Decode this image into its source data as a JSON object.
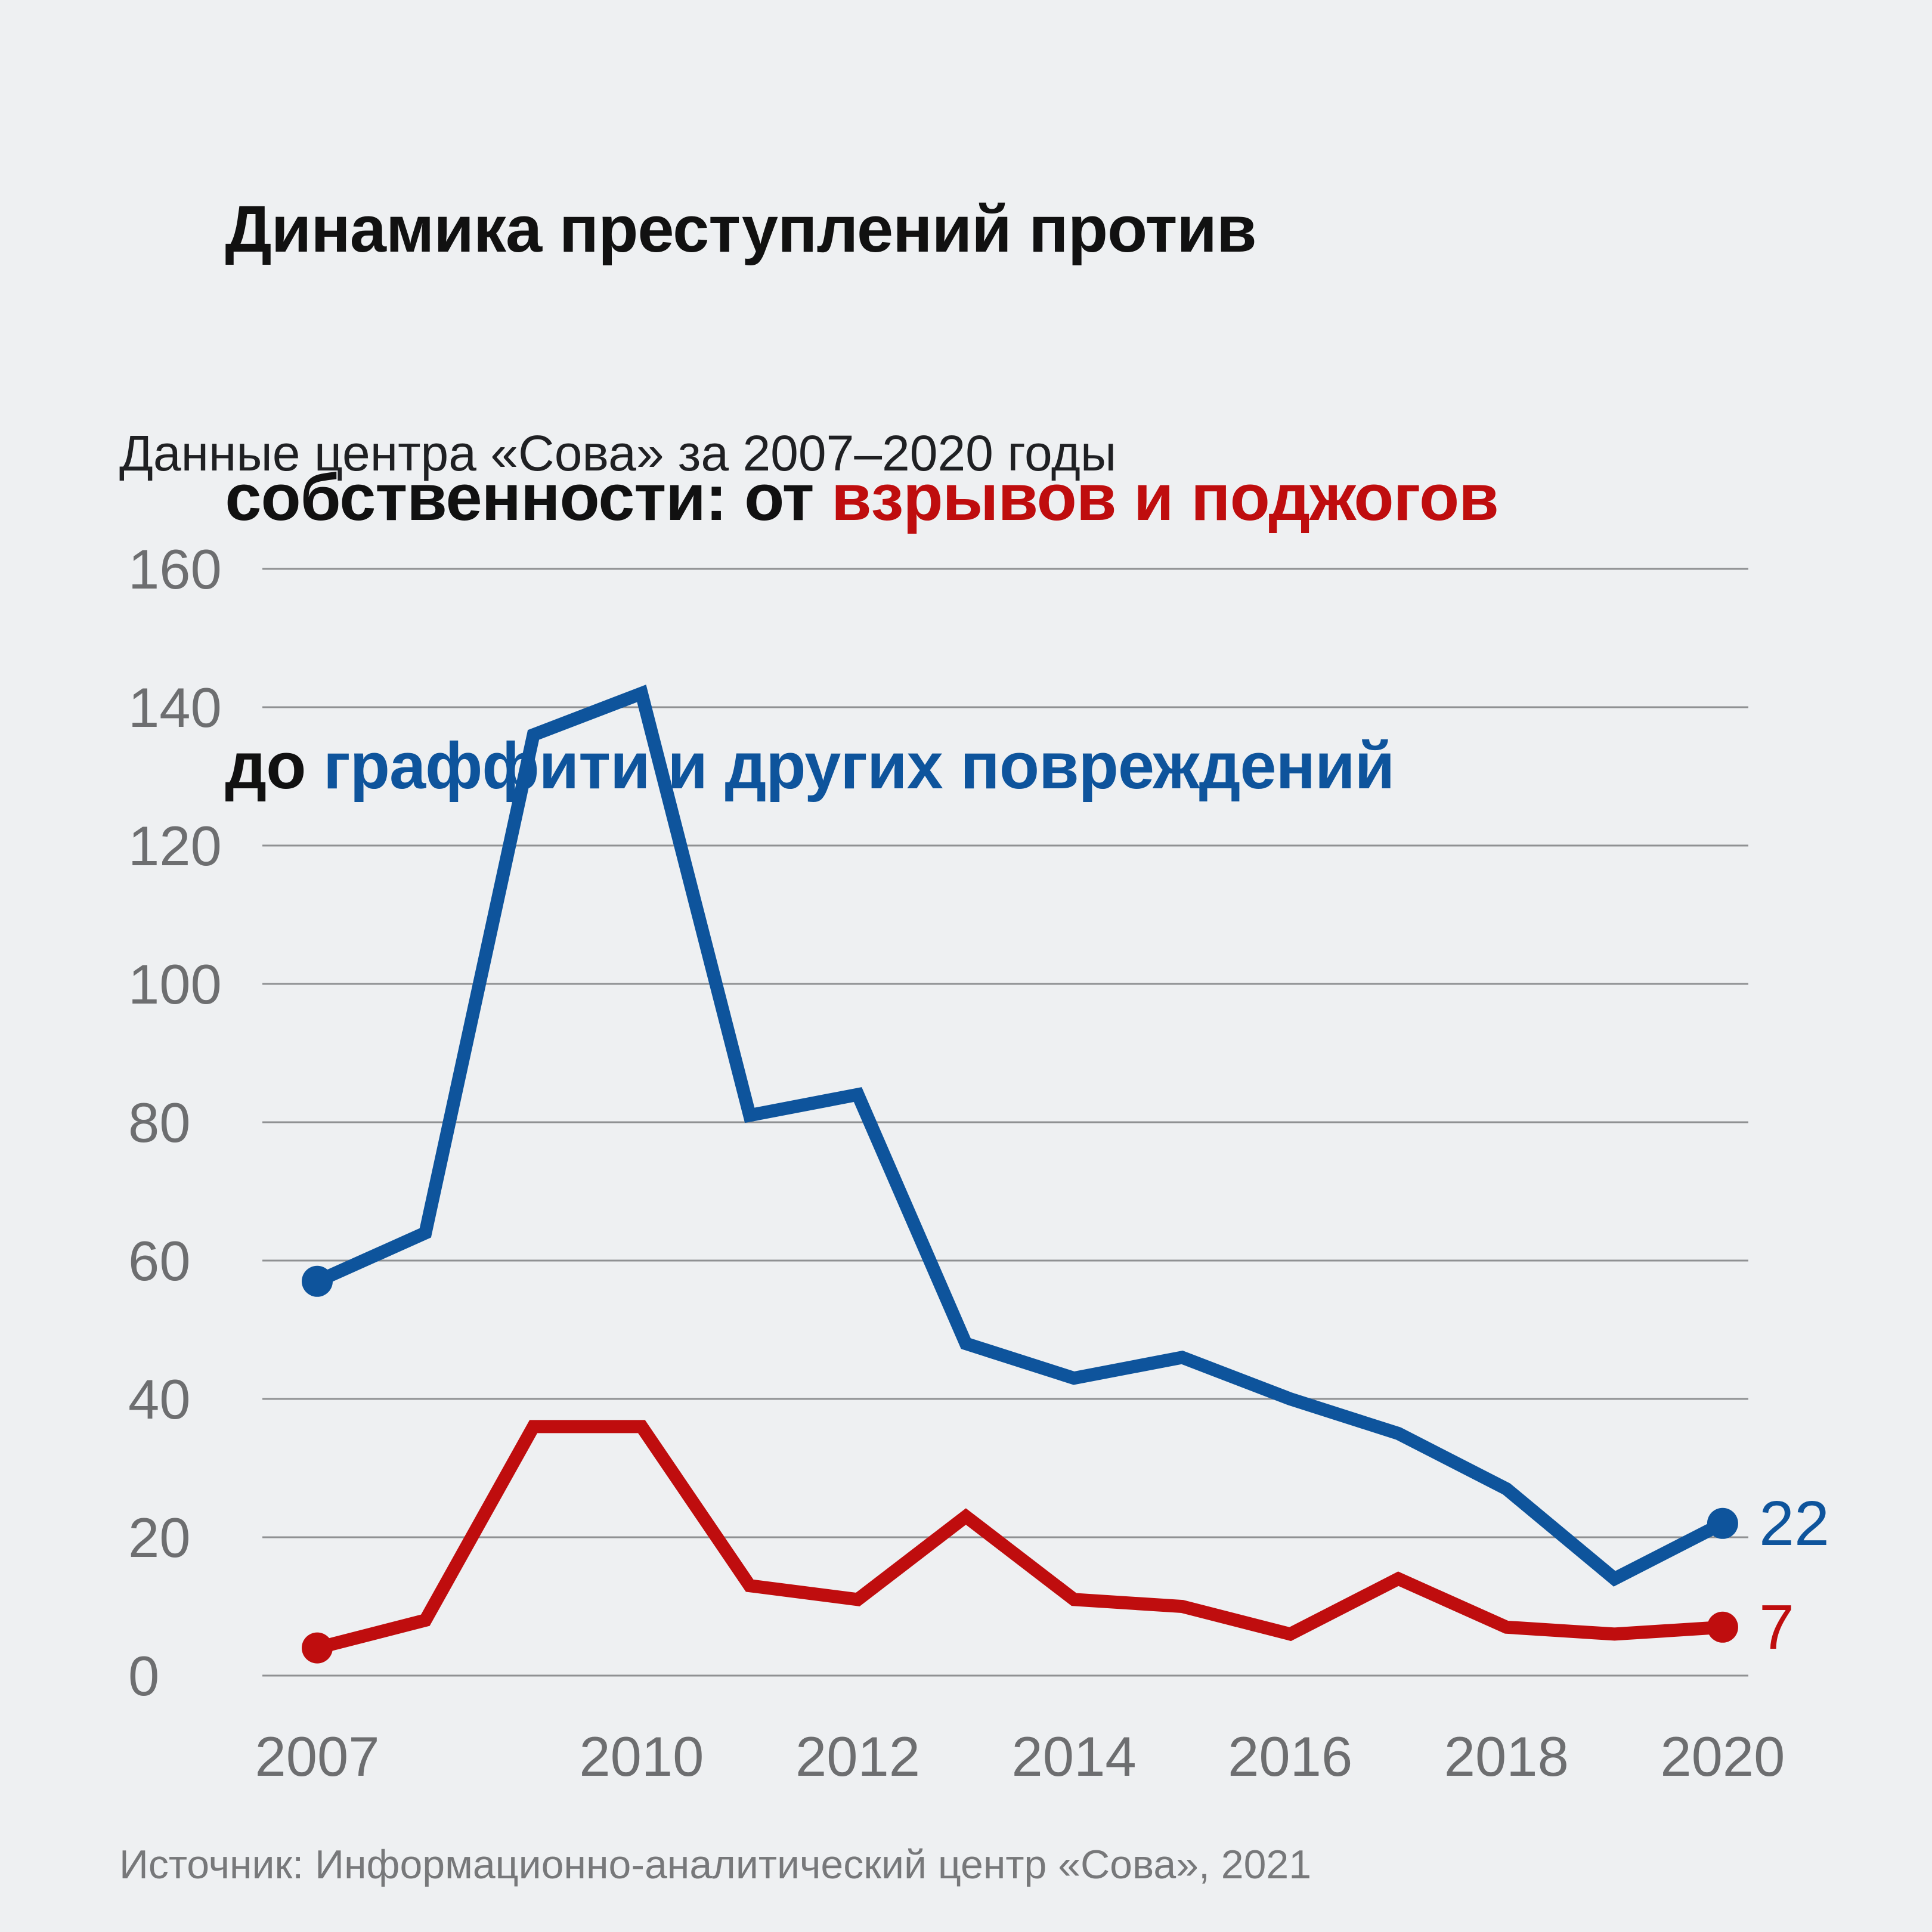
{
  "title": {
    "line1": "Динамика преступлений против",
    "line2_prefix": "собственности: от ",
    "line2_highlight": "взрывов и поджогов",
    "line3_prefix": "до ",
    "line3_highlight": "граффити и других повреждений"
  },
  "subtitle": "Данные центра «Сова» за 2007–2020 годы",
  "source": "Источник: Информационно-аналитический центр «Сова», 2021",
  "colors": {
    "red": "#bf0d0e",
    "blue": "#0e549c",
    "background": "#eef0f2",
    "grid": "#8f9193",
    "axis_text": "#6d6e70",
    "title_text": "#111111",
    "source_text": "#77787a"
  },
  "chart_data": {
    "type": "line",
    "x": [
      2007,
      2008,
      2009,
      2010,
      2011,
      2012,
      2013,
      2014,
      2015,
      2016,
      2017,
      2018,
      2019,
      2020
    ],
    "x_tick_labels": [
      "2007",
      "2010",
      "2012",
      "2014",
      "2016",
      "2018",
      "2020"
    ],
    "ylim": [
      0,
      160
    ],
    "ytick_step": 20,
    "grid": true,
    "legend_position": "none",
    "series": [
      {
        "name": "граффити и другие повреждения",
        "color_key": "blue",
        "values": [
          57,
          64,
          136,
          142,
          81,
          84,
          48,
          43,
          46,
          40,
          35,
          27,
          14,
          22
        ],
        "end_label": "22"
      },
      {
        "name": "взрывы и поджоги",
        "color_key": "red",
        "values": [
          4,
          8,
          36,
          36,
          13,
          11,
          23,
          11,
          10,
          6,
          14,
          7,
          6,
          7
        ],
        "end_label": "7"
      }
    ]
  }
}
